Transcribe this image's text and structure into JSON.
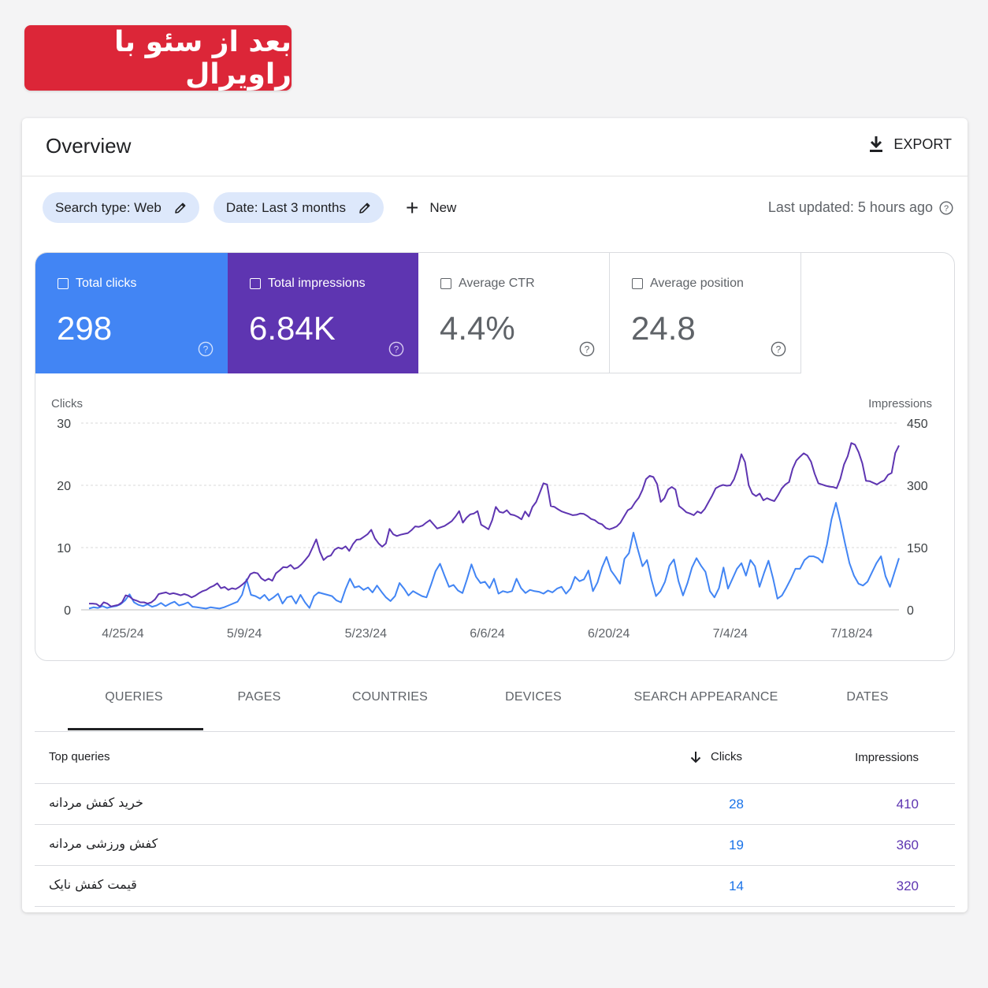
{
  "banner": {
    "text": "بعد از سئو با راویرال"
  },
  "header": {
    "title": "Overview",
    "export_label": "EXPORT"
  },
  "filters": {
    "search_type": "Search type: Web",
    "date": "Date: Last 3 months",
    "new_label": "New",
    "last_updated": "Last updated: 5 hours ago"
  },
  "metrics": {
    "clicks": {
      "label": "Total clicks",
      "value": "298",
      "color": "#4285f4",
      "selected": true
    },
    "impressions": {
      "label": "Total impressions",
      "value": "6.84K",
      "color": "#5e35b1",
      "selected": true
    },
    "ctr": {
      "label": "Average CTR",
      "value": "4.4%",
      "selected": false
    },
    "position": {
      "label": "Average position",
      "value": "24.8",
      "selected": false
    }
  },
  "chart_data": {
    "type": "line",
    "left_axis_label": "Clicks",
    "right_axis_label": "Impressions",
    "left_ticks": [
      0,
      10,
      20,
      30
    ],
    "right_ticks": [
      0,
      150,
      300,
      450
    ],
    "left_ylim": [
      0,
      30
    ],
    "right_ylim": [
      0,
      450
    ],
    "x_ticks": [
      "4/25/24",
      "5/9/24",
      "5/23/24",
      "6/6/24",
      "6/20/24",
      "7/4/24",
      "7/18/24"
    ],
    "grid": true,
    "series": [
      {
        "name": "Clicks",
        "axis": "left",
        "color": "#4285f4",
        "values": [
          0.2,
          0.4,
          0.3,
          0.6,
          0.3,
          0.5,
          0.6,
          0.9,
          1.5,
          2.5,
          1.2,
          0.8,
          0.6,
          0.9,
          0.5,
          0.7,
          1.1,
          0.6,
          1.0,
          1.3,
          0.7,
          0.9,
          1.2,
          0.5,
          0.4,
          0.3,
          0.2,
          0.4,
          0.3,
          0.2,
          0.4,
          0.7,
          1.0,
          1.3,
          2.4,
          4.9,
          2.4,
          2.2,
          1.8,
          2.4,
          1.5,
          2.0,
          2.6,
          1.0,
          2.0,
          2.2,
          1.0,
          2.4,
          1.2,
          0.3,
          2.2,
          2.8,
          2.6,
          2.4,
          2.2,
          1.5,
          1.2,
          3.3,
          5.0,
          3.6,
          3.8,
          3.2,
          3.6,
          2.8,
          3.9,
          2.9,
          2.0,
          1.4,
          2.2,
          4.3,
          3.4,
          2.3,
          3.0,
          2.6,
          2.2,
          2.0,
          4.0,
          6.2,
          7.4,
          5.5,
          3.7,
          4.0,
          3.1,
          2.7,
          4.9,
          7.3,
          5.3,
          4.3,
          4.5,
          3.5,
          5.0,
          2.6,
          3.0,
          2.8,
          3.0,
          5.0,
          3.5,
          2.7,
          3.2,
          3.0,
          2.9,
          2.6,
          3.1,
          2.8,
          3.4,
          3.7,
          2.6,
          3.4,
          5.3,
          4.6,
          4.9,
          6.3,
          3.0,
          4.4,
          6.8,
          8.5,
          6.3,
          5.3,
          4.2,
          8.2,
          9.1,
          12.4,
          9.6,
          7.0,
          8.0,
          4.8,
          2.2,
          3.0,
          4.5,
          7.1,
          8.1,
          4.6,
          2.3,
          4.3,
          6.8,
          8.3,
          7.1,
          6.1,
          3.0,
          2.0,
          3.5,
          6.8,
          3.4,
          5.0,
          6.6,
          7.5,
          5.5,
          8.0,
          7.0,
          3.7,
          5.9,
          7.9,
          5.1,
          1.8,
          2.3,
          3.6,
          5.0,
          6.6,
          6.6,
          8.0,
          8.6,
          8.6,
          8.3,
          7.6,
          10.5,
          14.5,
          17.2,
          14.1,
          10.7,
          7.5,
          5.5,
          4.2,
          3.9,
          4.5,
          6.0,
          7.5,
          8.6,
          5.4,
          3.7,
          6.0,
          8.3
        ]
      },
      {
        "name": "Impressions",
        "axis": "right",
        "color": "#5e35b1",
        "values": [
          15,
          15,
          14,
          8,
          18,
          15,
          8,
          10,
          12,
          18,
          35,
          32,
          25,
          22,
          18,
          18,
          15,
          18,
          25,
          38,
          40,
          42,
          38,
          40,
          38,
          35,
          38,
          35,
          30,
          34,
          40,
          45,
          48,
          54,
          58,
          64,
          52,
          55,
          48,
          52,
          50,
          55,
          62,
          70,
          86,
          90,
          88,
          76,
          70,
          75,
          70,
          88,
          95,
          103,
          102,
          108,
          99,
          102,
          110,
          120,
          131,
          150,
          170,
          140,
          120,
          128,
          131,
          145,
          150,
          147,
          153,
          142,
          158,
          169,
          170,
          176,
          182,
          193,
          172,
          160,
          152,
          160,
          195,
          182,
          178,
          181,
          183,
          185,
          192,
          201,
          200,
          203,
          210,
          216,
          206,
          196,
          199,
          202,
          208,
          214,
          225,
          238,
          210,
          222,
          230,
          232,
          238,
          205,
          200,
          194,
          216,
          248,
          236,
          234,
          240,
          230,
          228,
          224,
          218,
          237,
          225,
          248,
          260,
          282,
          305,
          302,
          250,
          248,
          242,
          237,
          234,
          231,
          228,
          229,
          232,
          231,
          226,
          219,
          216,
          209,
          206,
          197,
          194,
          197,
          201,
          210,
          225,
          240,
          245,
          259,
          270,
          289,
          315,
          323,
          320,
          303,
          260,
          269,
          290,
          296,
          290,
          250,
          243,
          235,
          232,
          228,
          237,
          233,
          243,
          259,
          275,
          293,
          298,
          301,
          299,
          300,
          315,
          340,
          375,
          356,
          300,
          280,
          274,
          280,
          264,
          269,
          265,
          262,
          276,
          292,
          302,
          308,
          340,
          360,
          369,
          377,
          372,
          357,
          328,
          305,
          302,
          299,
          297,
          296,
          293,
          316,
          350,
          370,
          402,
          398,
          380,
          353,
          311,
          310,
          306,
          302,
          308,
          312,
          325,
          330,
          378,
          396
        ]
      }
    ]
  },
  "tabs": [
    {
      "label": "QUERIES",
      "active": true
    },
    {
      "label": "PAGES",
      "active": false
    },
    {
      "label": "COUNTRIES",
      "active": false
    },
    {
      "label": "DEVICES",
      "active": false
    },
    {
      "label": "SEARCH APPEARANCE",
      "active": false
    },
    {
      "label": "DATES",
      "active": false
    }
  ],
  "table": {
    "headers": {
      "query": "Top queries",
      "clicks": "Clicks",
      "impressions": "Impressions"
    },
    "rows": [
      {
        "query": "خرید کفش مردانه",
        "clicks": "28",
        "impressions": "410"
      },
      {
        "query": "کفش ورزشی مردانه",
        "clicks": "19",
        "impressions": "360"
      },
      {
        "query": "قیمت کفش نایک",
        "clicks": "14",
        "impressions": "320"
      }
    ]
  }
}
